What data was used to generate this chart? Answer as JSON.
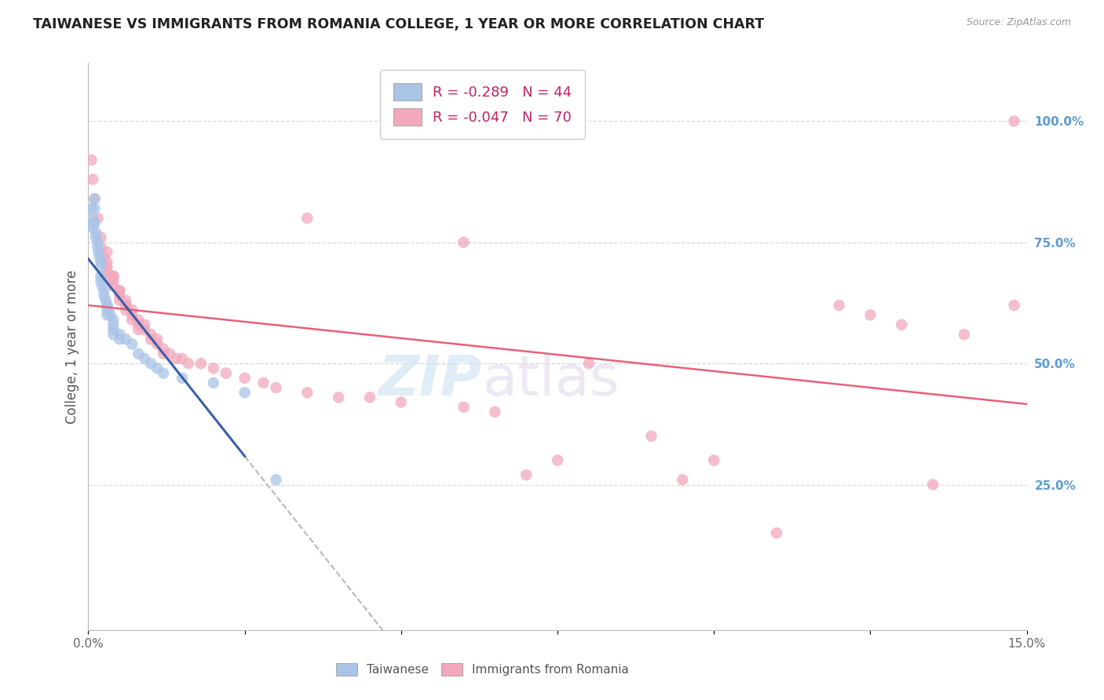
{
  "title": "TAIWANESE VS IMMIGRANTS FROM ROMANIA COLLEGE, 1 YEAR OR MORE CORRELATION CHART",
  "source": "Source: ZipAtlas.com",
  "ylabel": "College, 1 year or more",
  "ylabel_right_labels": [
    "25.0%",
    "50.0%",
    "75.0%",
    "100.0%"
  ],
  "ylabel_right_values": [
    0.25,
    0.5,
    0.75,
    1.0
  ],
  "legend_label1": "Taiwanese",
  "legend_label2": "Immigrants from Romania",
  "blue_color": "#aac4e8",
  "pink_color": "#f2a8bc",
  "blue_line_color": "#3a5fa8",
  "pink_line_color": "#e8607a",
  "dashed_line_color": "#b8b8b8",
  "right_axis_color": "#5b9bd5",
  "xlim": [
    0.0,
    0.15
  ],
  "ylim": [
    -0.05,
    1.12
  ],
  "grid_color": "#d8d8d8",
  "taiwanese_x": [
    0.0005,
    0.0006,
    0.0007,
    0.0008,
    0.001,
    0.001,
    0.001,
    0.0012,
    0.0012,
    0.0015,
    0.0015,
    0.0016,
    0.0018,
    0.002,
    0.002,
    0.002,
    0.002,
    0.0022,
    0.0025,
    0.0025,
    0.0028,
    0.003,
    0.003,
    0.003,
    0.003,
    0.0032,
    0.0035,
    0.004,
    0.004,
    0.004,
    0.004,
    0.005,
    0.005,
    0.006,
    0.007,
    0.008,
    0.009,
    0.01,
    0.011,
    0.012,
    0.015,
    0.02,
    0.025,
    0.03
  ],
  "taiwanese_y": [
    0.82,
    0.8,
    0.78,
    0.79,
    0.84,
    0.82,
    0.79,
    0.77,
    0.76,
    0.75,
    0.74,
    0.73,
    0.72,
    0.71,
    0.7,
    0.68,
    0.67,
    0.66,
    0.65,
    0.64,
    0.63,
    0.62,
    0.61,
    0.6,
    0.62,
    0.61,
    0.6,
    0.59,
    0.58,
    0.57,
    0.56,
    0.56,
    0.55,
    0.55,
    0.54,
    0.52,
    0.51,
    0.5,
    0.49,
    0.48,
    0.47,
    0.46,
    0.44,
    0.26
  ],
  "romania_x": [
    0.0005,
    0.0007,
    0.001,
    0.0015,
    0.002,
    0.002,
    0.0025,
    0.003,
    0.003,
    0.003,
    0.004,
    0.004,
    0.004,
    0.005,
    0.005,
    0.005,
    0.006,
    0.006,
    0.006,
    0.007,
    0.007,
    0.008,
    0.008,
    0.009,
    0.009,
    0.01,
    0.01,
    0.011,
    0.011,
    0.012,
    0.012,
    0.013,
    0.014,
    0.015,
    0.016,
    0.018,
    0.02,
    0.022,
    0.025,
    0.028,
    0.03,
    0.035,
    0.04,
    0.045,
    0.05,
    0.06,
    0.065,
    0.07,
    0.075,
    0.08,
    0.09,
    0.1,
    0.11,
    0.12,
    0.125,
    0.13,
    0.135,
    0.14,
    0.148,
    0.148,
    0.003,
    0.003,
    0.004,
    0.005,
    0.006,
    0.007,
    0.008,
    0.035,
    0.06,
    0.095
  ],
  "romania_y": [
    0.92,
    0.88,
    0.84,
    0.8,
    0.76,
    0.74,
    0.72,
    0.7,
    0.69,
    0.68,
    0.68,
    0.67,
    0.66,
    0.65,
    0.64,
    0.63,
    0.63,
    0.62,
    0.61,
    0.61,
    0.6,
    0.59,
    0.58,
    0.58,
    0.57,
    0.56,
    0.55,
    0.55,
    0.54,
    0.53,
    0.52,
    0.52,
    0.51,
    0.51,
    0.5,
    0.5,
    0.49,
    0.48,
    0.47,
    0.46,
    0.45,
    0.44,
    0.43,
    0.43,
    0.42,
    0.41,
    0.4,
    0.27,
    0.3,
    0.5,
    0.35,
    0.3,
    0.15,
    0.62,
    0.6,
    0.58,
    0.25,
    0.56,
    1.0,
    0.62,
    0.73,
    0.71,
    0.68,
    0.65,
    0.62,
    0.59,
    0.57,
    0.8,
    0.75,
    0.26
  ]
}
